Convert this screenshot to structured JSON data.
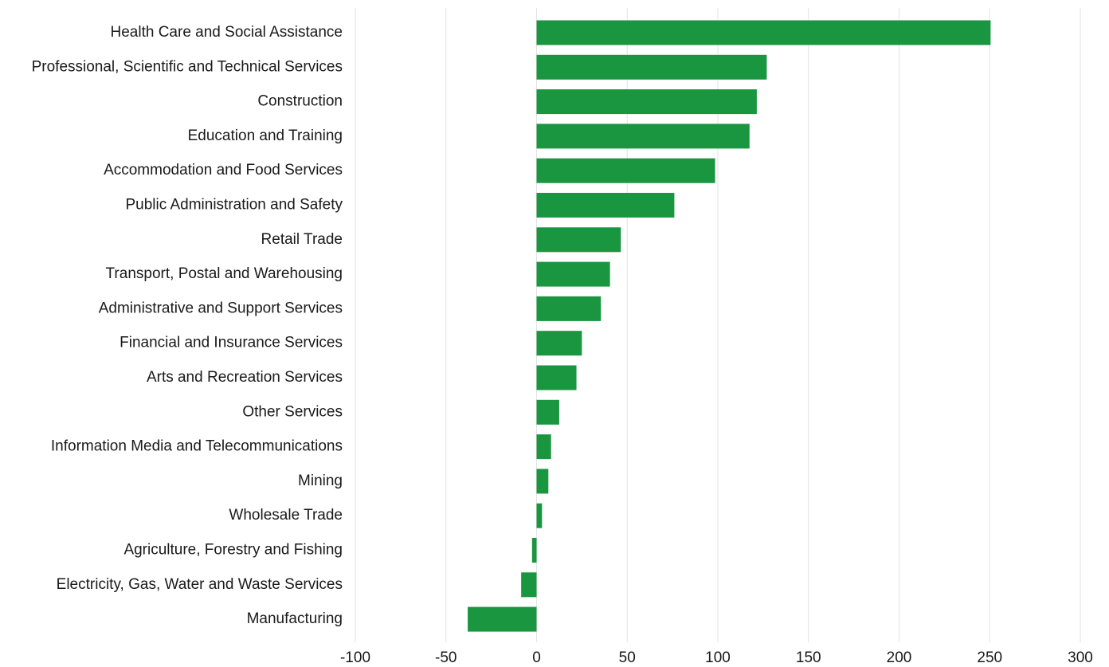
{
  "colors": {
    "bar": "#1a9641",
    "grid": "#e3e3e3",
    "text": "#1a1a1a",
    "background": "#ffffff"
  },
  "chart_data": {
    "type": "bar",
    "orientation": "horizontal",
    "title": "",
    "xlabel": "",
    "ylabel": "",
    "grid": true,
    "legend": "none",
    "xlim": [
      -100,
      300
    ],
    "xticks": [
      -100,
      -50,
      0,
      50,
      100,
      150,
      200,
      250,
      300
    ],
    "xtick_labels": [
      "-100",
      "-50",
      "0",
      "50",
      "100",
      "150",
      "200",
      "250",
      "300"
    ],
    "categories": [
      "Health Care and Social Assistance",
      "Professional, Scientific and Technical Services",
      "Construction",
      "Education and Training",
      "Accommodation and Food Services",
      "Public Administration and Safety",
      "Retail Trade",
      "Transport, Postal and Warehousing",
      "Administrative and Support Services",
      "Financial and Insurance Services",
      "Arts and Recreation Services",
      "Other Services",
      "Information Media and Telecommunications",
      "Mining",
      "Wholesale Trade",
      "Agriculture, Forestry and Fishing",
      "Electricity, Gas, Water and Waste Services",
      "Manufacturing"
    ],
    "values": [
      250.5,
      127,
      121.5,
      117.5,
      98.5,
      76,
      46.5,
      40.5,
      35.5,
      25,
      22,
      12.5,
      8,
      6.5,
      3,
      -2.5,
      -8.5,
      -38
    ]
  }
}
